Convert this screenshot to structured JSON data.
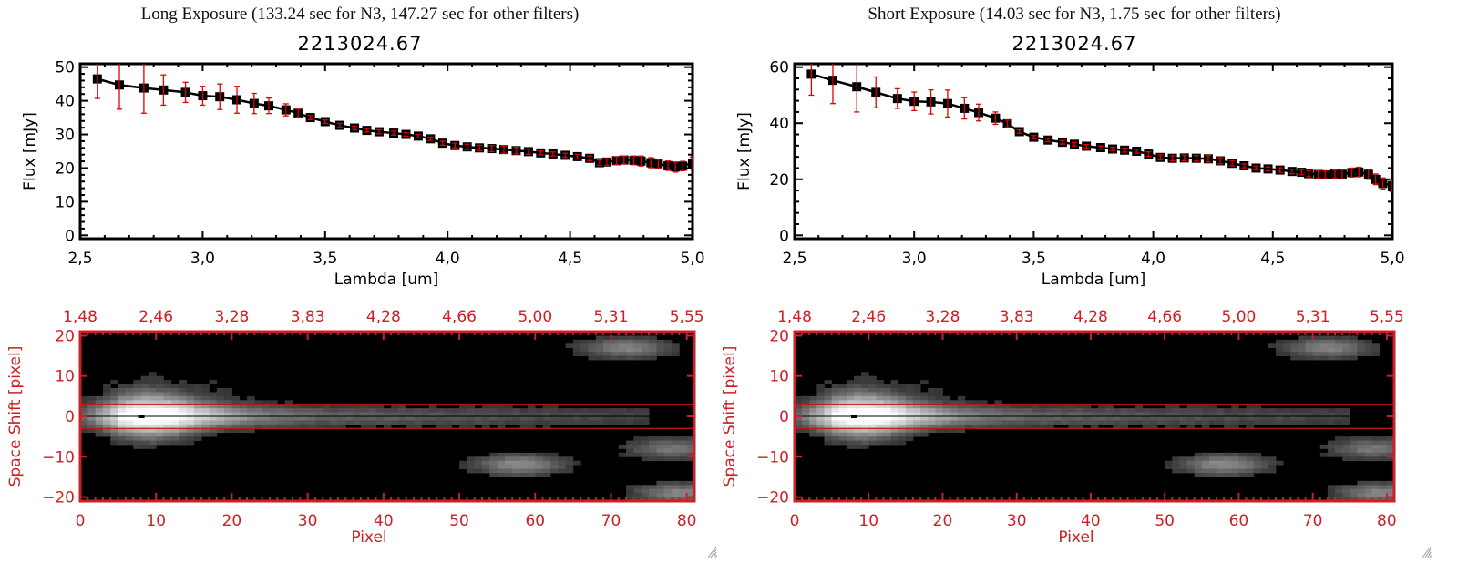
{
  "panels": [
    {
      "exposure_title": "Long Exposure (133.24 sec for N3, 147.27 sec for other filters)",
      "plot_title": "2213024.67"
    },
    {
      "exposure_title": "Short Exposure (14.03 sec for N3, 1.75 sec for other filters)",
      "plot_title": "2213024.67"
    }
  ],
  "colors": {
    "axis": "#000000",
    "error_bar": "#e00000",
    "image_axis": "#cc1f26",
    "aperture_line": "#d01010"
  },
  "chart_data": [
    {
      "type": "line",
      "title": "2213024.67",
      "xlabel": "Lambda [um]",
      "ylabel": "Flux [mJy]",
      "xlim": [
        2.5,
        5.0
      ],
      "ylim": [
        -1,
        51
      ],
      "xticks": [
        "2.5",
        "3.0",
        "3.5",
        "4.0",
        "4.5",
        "5.0"
      ],
      "xtick_values": [
        2.5,
        3.0,
        3.5,
        4.0,
        4.5,
        5.0
      ],
      "yticks": [
        "0",
        "10",
        "20",
        "30",
        "40",
        "50"
      ],
      "ytick_values": [
        0,
        10,
        20,
        30,
        40,
        50
      ],
      "grid": false,
      "series": [
        {
          "name": "flux",
          "x": [
            2.57,
            2.66,
            2.76,
            2.84,
            2.93,
            3.0,
            3.07,
            3.14,
            3.21,
            3.27,
            3.34,
            3.39,
            3.44,
            3.5,
            3.56,
            3.62,
            3.67,
            3.72,
            3.78,
            3.83,
            3.88,
            3.93,
            3.98,
            4.03,
            4.08,
            4.13,
            4.18,
            4.23,
            4.28,
            4.33,
            4.38,
            4.43,
            4.48,
            4.53,
            4.58,
            4.62,
            4.65,
            4.69,
            4.72,
            4.76,
            4.79,
            4.83,
            4.86,
            4.9,
            4.93,
            4.96,
            5.0
          ],
          "y": [
            46.5,
            44.7,
            43.8,
            43.2,
            42.5,
            41.5,
            41.2,
            40.3,
            39.2,
            38.5,
            37.3,
            36.3,
            35.0,
            33.8,
            32.7,
            31.9,
            31.2,
            30.8,
            30.4,
            30.0,
            29.5,
            28.7,
            27.4,
            26.7,
            26.3,
            26.0,
            25.8,
            25.5,
            25.2,
            24.9,
            24.5,
            24.2,
            23.8,
            23.4,
            22.9,
            21.6,
            21.8,
            22.2,
            22.4,
            22.3,
            22.1,
            21.6,
            21.3,
            20.7,
            20.3,
            20.6,
            21.5
          ],
          "err": [
            5.8,
            7.2,
            7.5,
            4.5,
            3.0,
            2.8,
            3.8,
            4.0,
            3.0,
            2.3,
            1.8,
            1.2,
            0.6,
            0.5,
            0.6,
            0.5,
            0.5,
            0.6,
            0.6,
            0.5,
            0.5,
            0.5,
            0.6,
            0.7,
            0.8,
            0.8,
            0.9,
            1.1,
            1.0,
            0.8,
            0.6,
            0.6,
            0.6,
            0.7,
            0.7,
            0.8,
            1.0,
            1.2,
            1.2,
            1.3,
            1.5,
            1.5,
            1.3,
            1.4,
            1.5,
            1.4,
            1.8
          ]
        }
      ]
    },
    {
      "type": "line",
      "title": "2213024.67",
      "xlabel": "Lambda [um]",
      "ylabel": "Flux [mJy]",
      "xlim": [
        2.5,
        5.0
      ],
      "ylim": [
        -1.2,
        61.2
      ],
      "xticks": [
        "2.5",
        "3.0",
        "3.5",
        "4.0",
        "4.5",
        "5.0"
      ],
      "xtick_values": [
        2.5,
        3.0,
        3.5,
        4.0,
        4.5,
        5.0
      ],
      "yticks": [
        "0",
        "20",
        "40",
        "60"
      ],
      "ytick_values": [
        0,
        20,
        40,
        60
      ],
      "grid": false,
      "series": [
        {
          "name": "flux",
          "x": [
            2.57,
            2.66,
            2.76,
            2.84,
            2.93,
            3.0,
            3.07,
            3.14,
            3.21,
            3.27,
            3.34,
            3.39,
            3.44,
            3.5,
            3.56,
            3.62,
            3.67,
            3.72,
            3.78,
            3.83,
            3.88,
            3.93,
            3.98,
            4.03,
            4.08,
            4.13,
            4.18,
            4.23,
            4.28,
            4.33,
            4.38,
            4.43,
            4.48,
            4.53,
            4.58,
            4.62,
            4.65,
            4.69,
            4.72,
            4.76,
            4.79,
            4.83,
            4.86,
            4.9,
            4.93,
            4.96,
            5.0
          ],
          "y": [
            57.5,
            55.3,
            53.0,
            51.0,
            48.8,
            47.8,
            47.6,
            47.0,
            45.3,
            43.8,
            41.8,
            39.8,
            37.0,
            35.0,
            34.0,
            33.2,
            32.5,
            31.8,
            31.3,
            30.8,
            30.4,
            30.0,
            29.0,
            27.8,
            27.5,
            27.6,
            27.5,
            27.3,
            26.6,
            25.7,
            24.8,
            24.0,
            23.7,
            23.3,
            22.8,
            22.5,
            22.0,
            21.7,
            21.6,
            21.9,
            21.8,
            22.4,
            22.6,
            21.8,
            20.0,
            18.5,
            17.8
          ],
          "err": [
            7.5,
            8.3,
            9.0,
            5.5,
            3.5,
            3.3,
            4.3,
            4.8,
            3.8,
            3.0,
            2.2,
            1.3,
            0.6,
            0.6,
            0.6,
            0.6,
            0.6,
            0.6,
            0.6,
            0.6,
            0.7,
            0.7,
            0.8,
            0.9,
            0.9,
            1.0,
            1.0,
            1.2,
            1.1,
            0.9,
            0.7,
            0.7,
            0.7,
            0.8,
            0.8,
            0.9,
            1.1,
            1.2,
            1.3,
            1.4,
            1.6,
            1.6,
            1.7,
            1.8,
            1.9,
            2.0,
            2.2
          ]
        }
      ]
    },
    {
      "type": "heatmap",
      "title": "",
      "xlabel": "Pixel",
      "ylabel": "Space Shift [pixel]",
      "xlim": [
        0,
        81
      ],
      "ylim": [
        -21,
        21
      ],
      "xticks": [
        "0",
        "10",
        "20",
        "30",
        "40",
        "50",
        "60",
        "70",
        "80"
      ],
      "xtick_values": [
        0,
        10,
        20,
        30,
        40,
        50,
        60,
        70,
        80
      ],
      "yticks": [
        "-20",
        "-10",
        "0",
        "10",
        "20"
      ],
      "ytick_values": [
        -20,
        -10,
        0,
        10,
        20
      ],
      "top_axis_label_values": [
        "1.48",
        "2.46",
        "3.28",
        "3.83",
        "4.28",
        "4.66",
        "5.00",
        "5.31",
        "5.55"
      ],
      "aperture_lines": [
        3,
        -3
      ],
      "trace_center": 0,
      "features": [
        {
          "name": "main trace",
          "x_range": [
            0,
            75
          ],
          "y_center": 0,
          "peak_x": 9,
          "peak_brightness": 1.0
        },
        {
          "name": "blob upper-right",
          "x_center": 72,
          "y_center": 17,
          "brightness": 0.45
        },
        {
          "name": "blob lower-mid",
          "x_center": 58,
          "y_center": -12,
          "brightness": 0.5
        },
        {
          "name": "blob lower-right",
          "x_center": 78,
          "y_center": -8,
          "brightness": 0.4
        },
        {
          "name": "blob bottom-right",
          "x_center": 79,
          "y_center": -19,
          "brightness": 0.45
        }
      ]
    },
    {
      "type": "heatmap",
      "title": "",
      "xlabel": "Pixel",
      "ylabel": "Space Shift [pixel]",
      "xlim": [
        0,
        81
      ],
      "ylim": [
        -21,
        21
      ],
      "xticks": [
        "0",
        "10",
        "20",
        "30",
        "40",
        "50",
        "60",
        "70",
        "80"
      ],
      "xtick_values": [
        0,
        10,
        20,
        30,
        40,
        50,
        60,
        70,
        80
      ],
      "yticks": [
        "-20",
        "-10",
        "0",
        "10",
        "20"
      ],
      "ytick_values": [
        -20,
        -10,
        0,
        10,
        20
      ],
      "top_axis_label_values": [
        "1.48",
        "2.46",
        "3.28",
        "3.83",
        "4.28",
        "4.66",
        "5.00",
        "5.31",
        "5.55"
      ],
      "aperture_lines": [
        3,
        -3
      ],
      "trace_center": 0,
      "features": [
        {
          "name": "main trace",
          "x_range": [
            0,
            75
          ],
          "y_center": 0,
          "peak_x": 9,
          "peak_brightness": 1.0
        },
        {
          "name": "blob upper-right",
          "x_center": 72,
          "y_center": 17,
          "brightness": 0.45
        },
        {
          "name": "blob lower-mid",
          "x_center": 58,
          "y_center": -12,
          "brightness": 0.5
        },
        {
          "name": "blob lower-right",
          "x_center": 78,
          "y_center": -8,
          "brightness": 0.4
        },
        {
          "name": "blob bottom-right",
          "x_center": 79,
          "y_center": -19,
          "brightness": 0.45
        }
      ]
    }
  ]
}
